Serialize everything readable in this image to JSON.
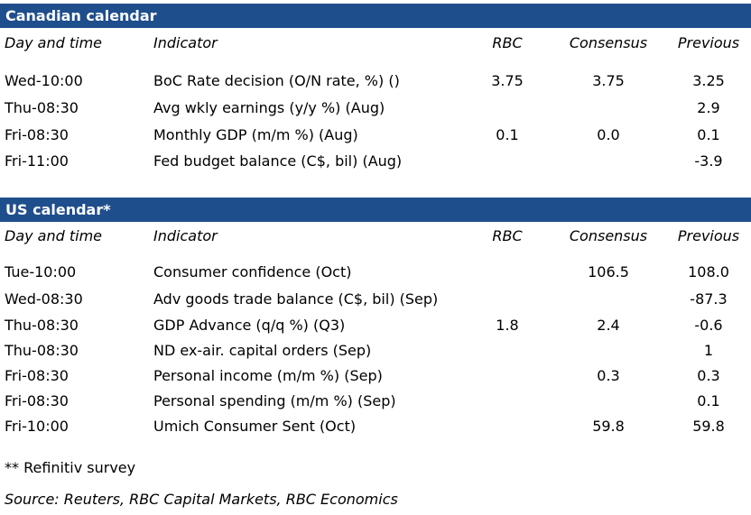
{
  "canadian": {
    "title": "Canadian calendar",
    "headers": {
      "time": "Day and time",
      "indicator": "Indicator",
      "rbc": "RBC",
      "consensus": "Consensus",
      "previous": "Previous"
    },
    "rows": [
      {
        "time": "Wed-10:00",
        "indicator": "BoC Rate decision (O/N rate, %) ()",
        "rbc": "3.75",
        "consensus": "3.75",
        "previous": "3.25"
      },
      {
        "time": "Thu-08:30",
        "indicator": "Avg wkly earnings (y/y %) (Aug)",
        "rbc": "",
        "consensus": "",
        "previous": "2.9"
      },
      {
        "time": "Fri-08:30",
        "indicator": "Monthly GDP (m/m %) (Aug)",
        "rbc": "0.1",
        "consensus": "0.0",
        "previous": "0.1"
      },
      {
        "time": "Fri-11:00",
        "indicator": "Fed budget balance (C$, bil) (Aug)",
        "rbc": "",
        "consensus": "",
        "previous": "-3.9"
      }
    ]
  },
  "us": {
    "title": "US calendar*",
    "headers": {
      "time": "Day and time",
      "indicator": "Indicator",
      "rbc": "RBC",
      "consensus": "Consensus",
      "previous": "Previous"
    },
    "rows": [
      {
        "time": "Tue-10:00",
        "indicator": "Consumer confidence (Oct)",
        "rbc": "",
        "consensus": "106.5",
        "previous": "108.0"
      },
      {
        "time": "Wed-08:30",
        "indicator": "Adv goods trade balance (C$, bil) (Sep)",
        "rbc": "",
        "consensus": "",
        "previous": "-87.3"
      },
      {
        "time": "Thu-08:30",
        "indicator": "GDP Advance (q/q %) (Q3)",
        "rbc": "1.8",
        "consensus": "2.4",
        "previous": "-0.6"
      },
      {
        "time": "Thu-08:30",
        "indicator": "ND ex-air. capital orders (Sep)",
        "rbc": "",
        "consensus": "",
        "previous": "1"
      },
      {
        "time": "Fri-08:30",
        "indicator": "Personal income (m/m %) (Sep)",
        "rbc": "",
        "consensus": "0.3",
        "previous": "0.3"
      },
      {
        "time": "Fri-08:30",
        "indicator": "Personal spending (m/m %) (Sep)",
        "rbc": "",
        "consensus": "",
        "previous": "0.1"
      },
      {
        "time": "Fri-10:00",
        "indicator": "Umich Consumer Sent (Oct)",
        "rbc": "",
        "consensus": "59.8",
        "previous": "59.8"
      }
    ]
  },
  "footnote": "** Refinitiv survey",
  "source": "Source: Reuters, RBC Capital Markets, RBC Economics",
  "colors": {
    "band": "#1f4e8c",
    "band_text": "#ffffff"
  }
}
